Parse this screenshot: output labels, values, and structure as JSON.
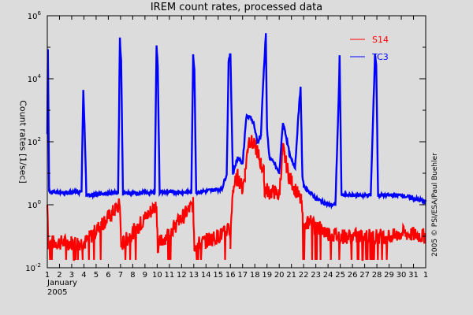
{
  "chart_data": {
    "type": "line",
    "title": "IREM count rates, processed data",
    "xlabel": "January 2005",
    "ylabel": "Count rates [1/sec]",
    "yscale": "log",
    "ylim": [
      0.01,
      1000000
    ],
    "yticks": [
      "10^6",
      "10^4",
      "10^2",
      "10^0",
      "10^-2"
    ],
    "xticks": [
      "1",
      "2",
      "3",
      "4",
      "5",
      "6",
      "7",
      "8",
      "9",
      "10",
      "11",
      "12",
      "13",
      "14",
      "15",
      "16",
      "17",
      "18",
      "19",
      "20",
      "21",
      "22",
      "23",
      "24",
      "25",
      "26",
      "27",
      "28",
      "29",
      "30",
      "31",
      "1"
    ],
    "x_month_label": "January",
    "x_year_label": "2005",
    "xlim_days": [
      1,
      32
    ],
    "legend": [
      {
        "name": "S14",
        "color": "#ff0000"
      },
      {
        "name": "TC3",
        "color": "#0000ff"
      }
    ],
    "legend_position": "upper right",
    "copyright": "2005 © PSI/ESA/Paul Buehler",
    "series": [
      {
        "name": "TC3",
        "color": "#0000ff",
        "x_day": [
          1.0,
          1.05,
          1.15,
          3.8,
          3.95,
          4.05,
          4.2,
          4.35,
          6.8,
          6.95,
          7.05,
          7.2,
          9.8,
          9.95,
          10.05,
          10.2,
          12.8,
          12.95,
          13.05,
          13.2,
          15.3,
          15.7,
          15.85,
          16.0,
          16.2,
          16.6,
          17.0,
          17.3,
          17.6,
          17.9,
          18.2,
          18.5,
          18.7,
          18.9,
          19.0,
          19.2,
          19.6,
          20.0,
          20.3,
          20.5,
          20.9,
          21.3,
          21.6,
          21.75,
          21.9,
          22.0,
          22.5,
          23.0,
          23.5,
          24.0,
          24.6,
          24.85,
          24.95,
          25.1,
          25.5,
          27.5,
          27.85,
          27.95,
          28.1,
          29.0,
          30.0,
          32.0
        ],
        "log10_values": [
          2.3,
          4.9,
          0.4,
          0.4,
          3.6,
          2.5,
          0.35,
          0.3,
          0.4,
          5.3,
          4.5,
          0.35,
          0.4,
          5.1,
          4.4,
          0.4,
          0.4,
          4.8,
          4.3,
          0.4,
          0.5,
          1.0,
          4.5,
          4.8,
          1.0,
          1.5,
          1.3,
          2.8,
          2.8,
          2.6,
          2.0,
          2.2,
          4.0,
          5.4,
          2.4,
          1.5,
          1.3,
          1.0,
          2.6,
          2.3,
          1.5,
          1.2,
          3.0,
          3.7,
          0.9,
          0.6,
          0.4,
          0.2,
          0.1,
          0.0,
          0.0,
          3.1,
          4.7,
          0.3,
          0.3,
          0.3,
          4.8,
          4.4,
          0.3,
          0.3,
          0.3,
          0.1
        ],
        "baseline_log10": 0.35
      },
      {
        "name": "S14",
        "color": "#ff0000",
        "x_day": [
          1.0,
          1.1,
          3.9,
          4.1,
          6.95,
          7.05,
          9.95,
          10.05,
          12.95,
          13.05,
          15.6,
          15.8,
          16.0,
          16.2,
          16.6,
          17.0,
          17.2,
          17.5,
          17.9,
          18.2,
          18.5,
          18.75,
          18.8,
          18.9,
          19.2,
          19.6,
          20.0,
          20.3,
          20.4,
          20.8,
          21.3,
          21.8,
          22.0,
          22.5,
          23.0,
          24.0,
          25.0,
          27.0,
          28.0,
          29.5,
          30.0,
          32.0
        ],
        "log10_values": [
          0.0,
          -1.2,
          -1.2,
          -1.2,
          0.0,
          -1.3,
          0.0,
          -1.3,
          0.0,
          -1.3,
          -0.9,
          -0.7,
          -1.2,
          0.5,
          0.9,
          0.5,
          1.0,
          2.1,
          1.9,
          1.7,
          1.3,
          1.0,
          0.4,
          0.5,
          0.4,
          0.4,
          0.3,
          1.8,
          1.6,
          0.9,
          0.5,
          0.1,
          -0.8,
          -0.5,
          -0.7,
          -0.9,
          -1.0,
          -1.0,
          -1.0,
          -1.0,
          -0.9,
          -1.0
        ],
        "noise_band_log10": [
          -1.5,
          -0.6
        ],
        "baseline_log10": -0.9
      }
    ]
  }
}
